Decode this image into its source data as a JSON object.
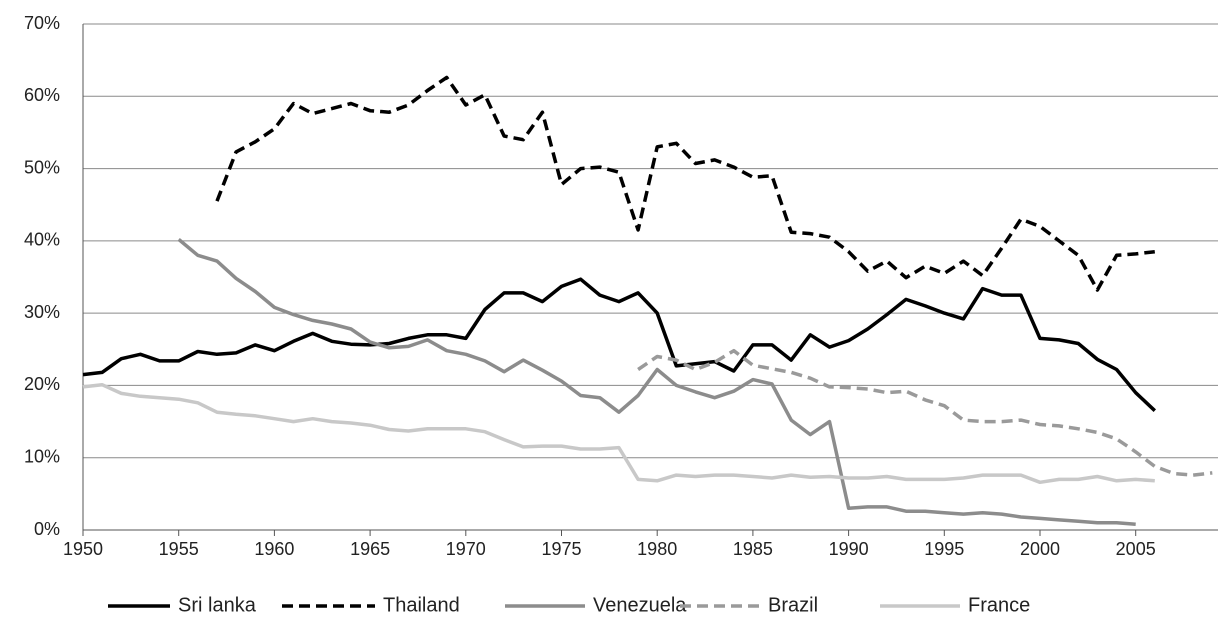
{
  "chart_data": {
    "type": "line",
    "x": [
      1950,
      1951,
      1952,
      1953,
      1954,
      1955,
      1956,
      1957,
      1958,
      1959,
      1960,
      1961,
      1962,
      1963,
      1964,
      1965,
      1966,
      1967,
      1968,
      1969,
      1970,
      1971,
      1972,
      1973,
      1974,
      1975,
      1976,
      1977,
      1978,
      1979,
      1980,
      1981,
      1982,
      1983,
      1984,
      1985,
      1986,
      1987,
      1988,
      1989,
      1990,
      1991,
      1992,
      1993,
      1994,
      1995,
      1996,
      1997,
      1998,
      1999,
      2000,
      2001,
      2002,
      2003,
      2004,
      2005,
      2006,
      2007,
      2008,
      2009
    ],
    "series": [
      {
        "name": "Sri lanka",
        "color": "#000000",
        "dashed": false,
        "values": [
          21.5,
          21.8,
          23.7,
          24.3,
          23.4,
          23.4,
          24.7,
          24.3,
          24.5,
          25.6,
          24.8,
          26.1,
          27.2,
          26.1,
          25.7,
          25.6,
          25.8,
          26.5,
          27.0,
          27.0,
          26.5,
          30.5,
          32.8,
          32.8,
          31.6,
          33.7,
          34.7,
          32.5,
          31.6,
          32.8,
          30.0,
          22.7,
          23.0,
          23.3,
          22.0,
          25.6,
          25.6,
          23.5,
          27.0,
          25.3,
          26.2,
          27.8,
          29.8,
          31.9,
          31.0,
          30.0,
          29.2,
          33.4,
          32.5,
          32.5,
          26.5,
          26.3,
          25.8,
          23.6,
          22.2,
          19.0,
          16.5,
          null,
          null,
          null
        ]
      },
      {
        "name": "Thailand",
        "color": "#000000",
        "dashed": true,
        "values": [
          null,
          null,
          null,
          null,
          null,
          null,
          null,
          45.5,
          52.3,
          53.7,
          55.5,
          59.0,
          57.6,
          58.3,
          59.0,
          58.0,
          57.8,
          58.8,
          60.8,
          62.6,
          58.8,
          60.2,
          54.5,
          54.0,
          57.8,
          47.8,
          50.0,
          50.2,
          49.5,
          41.5,
          53.0,
          53.5,
          50.7,
          51.2,
          50.2,
          48.8,
          49.0,
          41.2,
          41.0,
          40.5,
          38.5,
          35.8,
          37.2,
          34.9,
          36.5,
          35.5,
          37.2,
          35.2,
          39.0,
          43.0,
          42.0,
          40.0,
          38.0,
          33.2,
          38.0,
          38.2,
          38.5,
          null,
          null,
          null
        ]
      },
      {
        "name": "Venezuela",
        "color": "#8c8c8c",
        "dashed": false,
        "values": [
          null,
          null,
          null,
          null,
          null,
          40.2,
          38.0,
          37.2,
          34.8,
          33.0,
          30.8,
          29.8,
          29.0,
          28.5,
          27.8,
          26.0,
          25.2,
          25.4,
          26.3,
          24.8,
          24.3,
          23.4,
          21.9,
          23.5,
          22.1,
          20.6,
          18.6,
          18.3,
          16.3,
          18.6,
          22.2,
          20.0,
          19.1,
          18.3,
          19.2,
          20.8,
          20.2,
          15.2,
          13.2,
          15.0,
          3.0,
          3.2,
          3.2,
          2.6,
          2.6,
          2.4,
          2.2,
          2.4,
          2.2,
          1.8,
          1.6,
          1.4,
          1.2,
          1.0,
          1.0,
          0.8,
          null,
          null,
          null,
          null
        ]
      },
      {
        "name": "Brazil",
        "color": "#9a9a9a",
        "dashed": true,
        "values": [
          null,
          null,
          null,
          null,
          null,
          null,
          null,
          null,
          null,
          null,
          null,
          null,
          null,
          null,
          null,
          null,
          null,
          null,
          null,
          null,
          null,
          null,
          null,
          null,
          null,
          null,
          null,
          null,
          null,
          22.2,
          24.0,
          23.5,
          22.2,
          23.2,
          24.8,
          22.8,
          22.3,
          21.8,
          21.0,
          19.8,
          19.7,
          19.5,
          19.0,
          19.2,
          18.0,
          17.2,
          15.2,
          15.0,
          15.0,
          15.2,
          14.6,
          14.4,
          14.0,
          13.5,
          12.6,
          10.8,
          8.8,
          7.8,
          7.6,
          7.9
        ]
      },
      {
        "name": "France",
        "color": "#c8c8c8",
        "dashed": false,
        "values": [
          19.8,
          20.1,
          18.9,
          18.5,
          18.3,
          18.1,
          17.6,
          16.3,
          16.0,
          15.8,
          15.4,
          15.0,
          15.4,
          15.0,
          14.8,
          14.5,
          13.9,
          13.7,
          14.0,
          14.0,
          14.0,
          13.6,
          12.5,
          11.5,
          11.6,
          11.6,
          11.2,
          11.2,
          11.4,
          7.0,
          6.8,
          7.6,
          7.4,
          7.6,
          7.6,
          7.4,
          7.2,
          7.6,
          7.3,
          7.4,
          7.2,
          7.2,
          7.4,
          7.0,
          7.0,
          7.0,
          7.2,
          7.6,
          7.6,
          7.6,
          6.6,
          7.0,
          7.0,
          7.4,
          6.8,
          7.0,
          6.8,
          null,
          null,
          null
        ]
      }
    ],
    "xlim": [
      1950,
      2009.3
    ],
    "xticks": [
      1950,
      1955,
      1960,
      1965,
      1970,
      1975,
      1980,
      1985,
      1990,
      1995,
      2000,
      2005
    ],
    "ylim": [
      0,
      70
    ],
    "yticks": [
      {
        "value": 0,
        "label": "0%"
      },
      {
        "value": 10,
        "label": "10%"
      },
      {
        "value": 20,
        "label": "20%"
      },
      {
        "value": 30,
        "label": "30%"
      },
      {
        "value": 40,
        "label": "40%"
      },
      {
        "value": 50,
        "label": "50%"
      },
      {
        "value": 60,
        "label": "60%"
      },
      {
        "value": 70,
        "label": "70%"
      }
    ],
    "grid": true,
    "legend": "bottom"
  }
}
